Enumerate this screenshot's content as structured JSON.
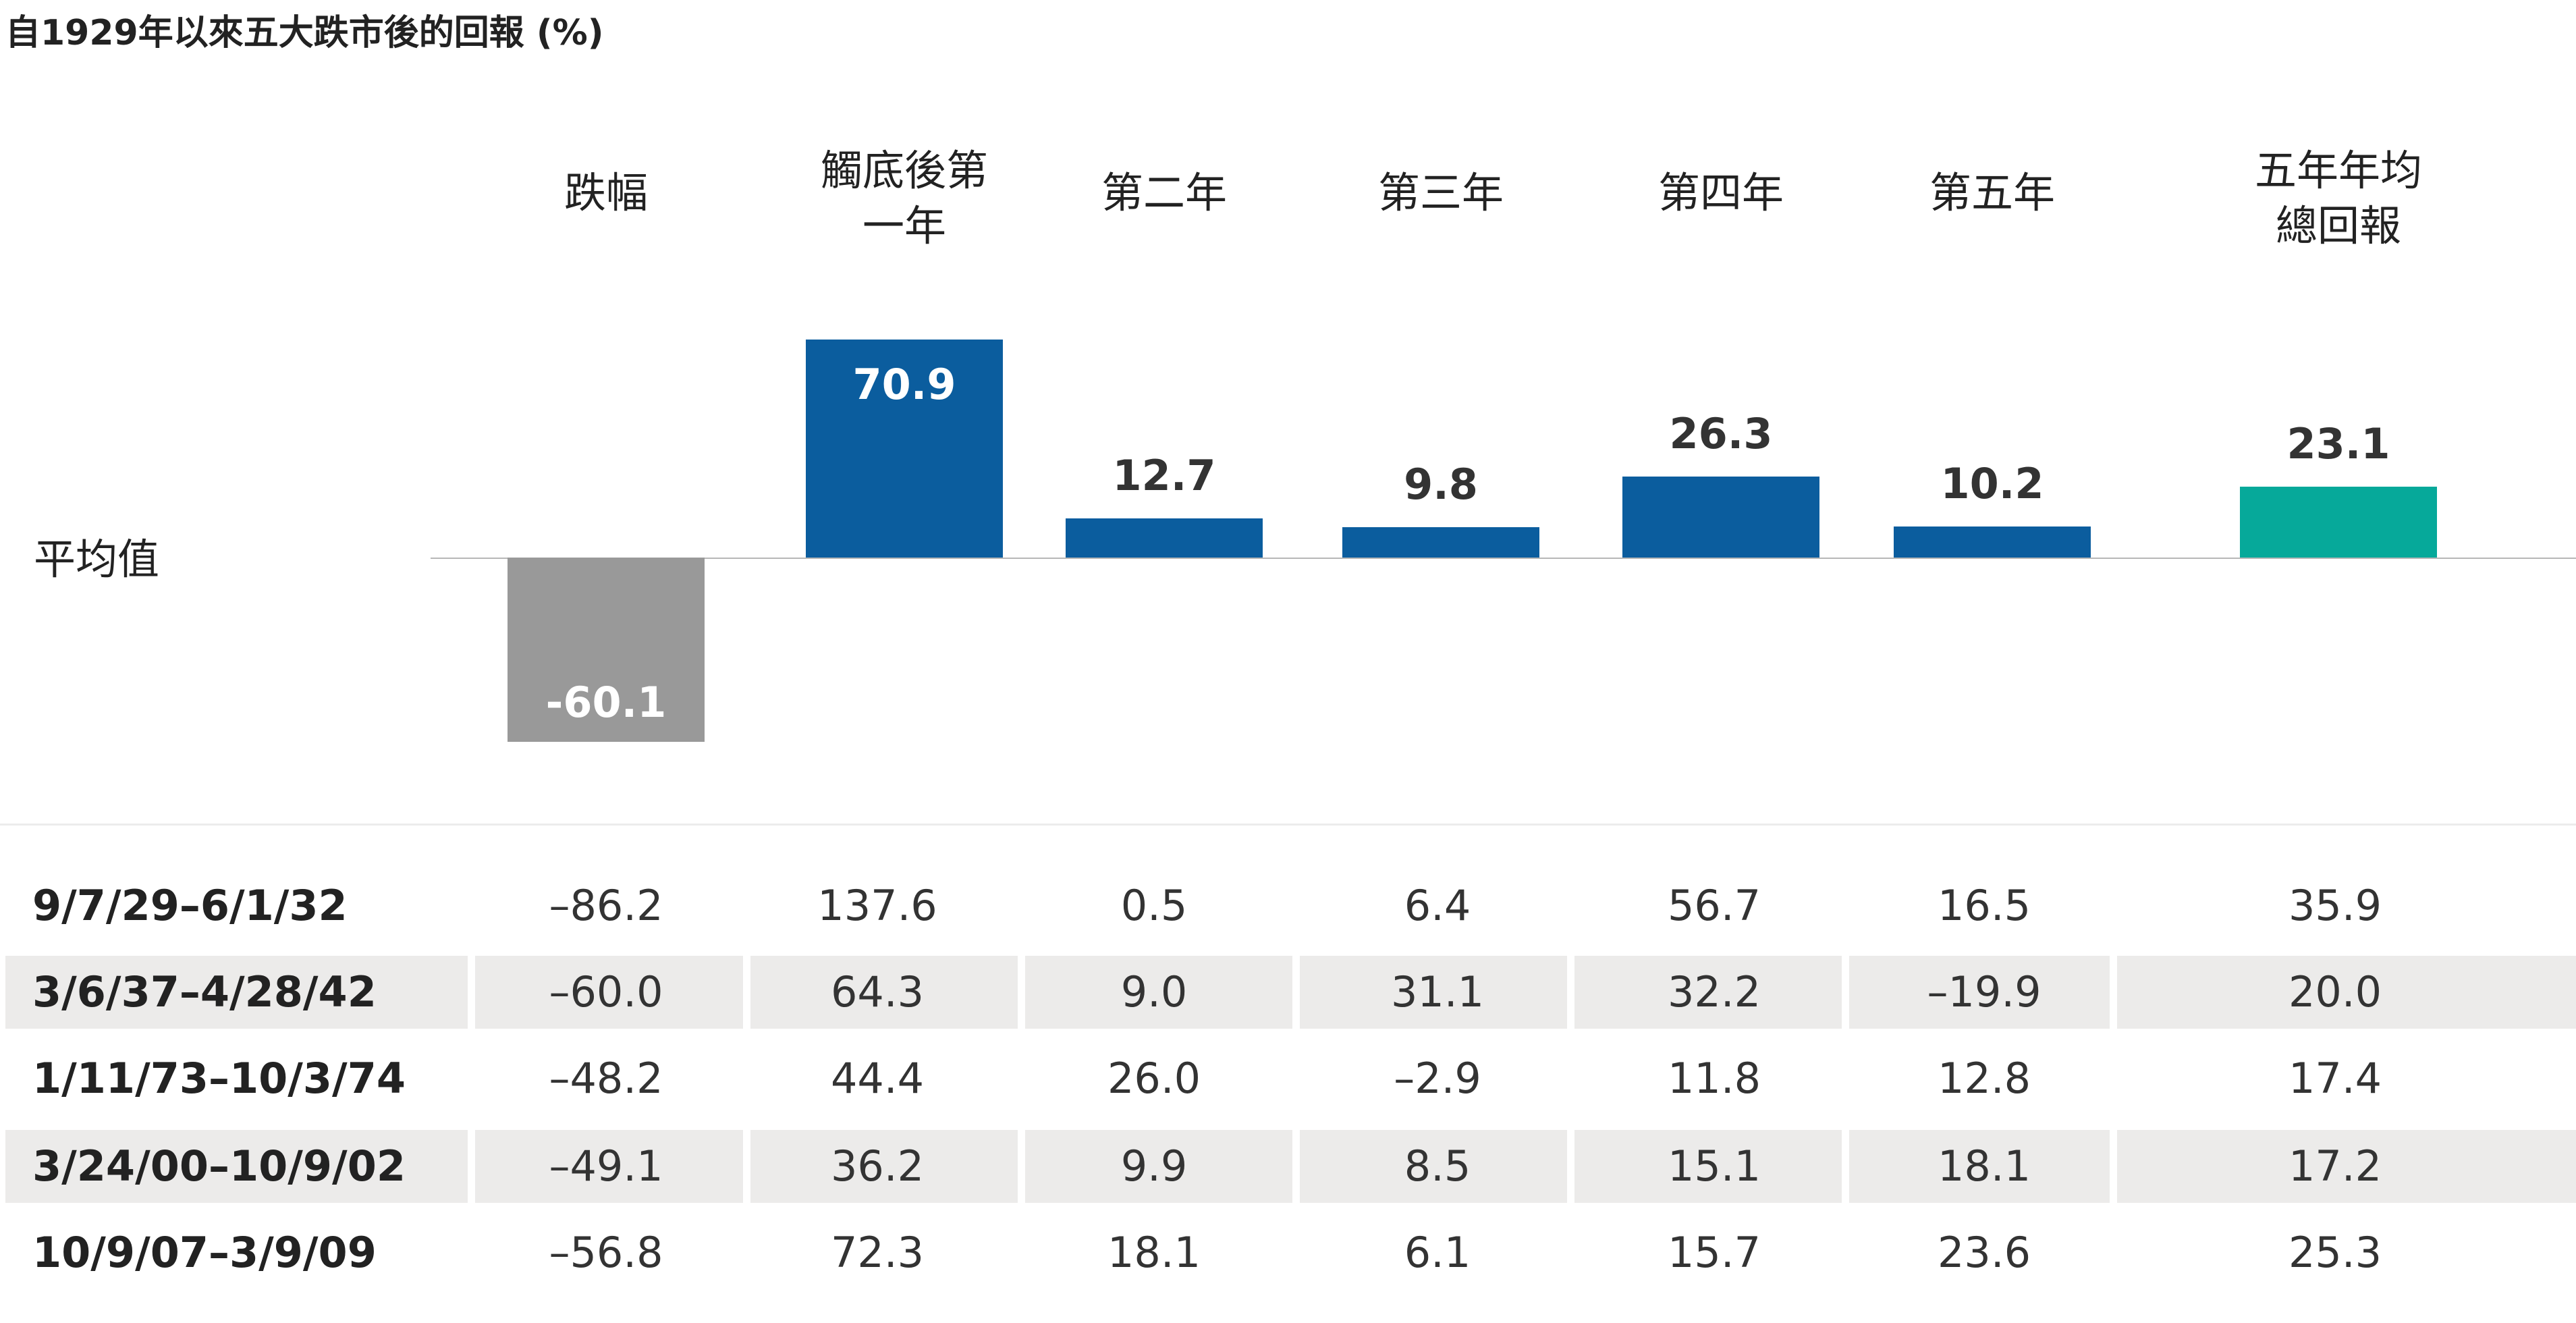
{
  "title": "自1929年以來五大跌市後的回報 (%)",
  "avg_label": "平均值",
  "columns": [
    "跌幅",
    "觸底後第\n一年",
    "第二年",
    "第三年",
    "第四年",
    "第五年",
    "五年年均\n總回報"
  ],
  "colors": {
    "negative_bar": "#999999",
    "year_bars": "#0b5d9e",
    "average_bar": "#06a99a"
  },
  "chart_data": {
    "type": "bar",
    "title": "自1929年以來五大跌市後的回報 (%)",
    "ylabel": "",
    "categories": [
      "跌幅",
      "觸底後第一年",
      "第二年",
      "第三年",
      "第四年",
      "第五年",
      "五年年均總回報"
    ],
    "series": [
      {
        "values": [
          -60.1,
          70.9,
          12.7,
          9.8,
          26.3,
          10.2,
          23.1
        ],
        "labels": [
          "-60.1",
          "70.9",
          "12.7",
          "9.8",
          "26.3",
          "10.2",
          "23.1"
        ]
      }
    ],
    "ylim": [
      -60.1,
      70.9
    ]
  },
  "table": {
    "rows": [
      {
        "label": "9/7/29–6/1/32",
        "values": [
          "–86.2",
          "137.6",
          "0.5",
          "6.4",
          "56.7",
          "16.5",
          "35.9"
        ]
      },
      {
        "label": "3/6/37–4/28/42",
        "values": [
          "–60.0",
          "64.3",
          "9.0",
          "31.1",
          "32.2",
          "–19.9",
          "20.0"
        ]
      },
      {
        "label": "1/11/73–10/3/74",
        "values": [
          "–48.2",
          "44.4",
          "26.0",
          "–2.9",
          "11.8",
          "12.8",
          "17.4"
        ]
      },
      {
        "label": "3/24/00–10/9/02",
        "values": [
          "–49.1",
          "36.2",
          "9.9",
          "8.5",
          "15.1",
          "18.1",
          "17.2"
        ]
      },
      {
        "label": "10/9/07–3/9/09",
        "values": [
          "–56.8",
          "72.3",
          "18.1",
          "6.1",
          "15.7",
          "23.6",
          "25.3"
        ]
      }
    ]
  }
}
